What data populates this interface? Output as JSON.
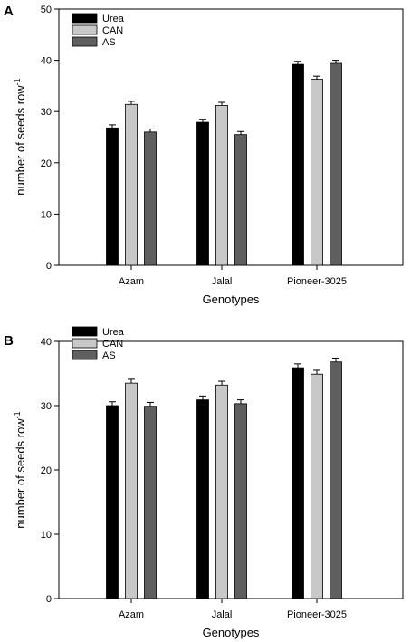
{
  "chart_data": [
    {
      "panel": "A",
      "type": "bar",
      "categories": [
        "Azam",
        "Jalal",
        "Pioneer-3025"
      ],
      "series": [
        {
          "name": "Urea",
          "color": "#000000",
          "values": [
            26.8,
            27.9,
            39.2
          ],
          "errors": [
            0.6,
            0.6,
            0.6
          ]
        },
        {
          "name": "CAN",
          "color": "#c8c8c8",
          "values": [
            31.4,
            31.2,
            36.3
          ],
          "errors": [
            0.6,
            0.6,
            0.6
          ]
        },
        {
          "name": "AS",
          "color": "#5f5f5f",
          "values": [
            26.0,
            25.5,
            39.4
          ],
          "errors": [
            0.6,
            0.6,
            0.6
          ]
        }
      ],
      "xlabel": "Genotypes",
      "ylabel": "number of seeds row",
      "ylabel_sup": "-1",
      "ylim": [
        0,
        50
      ],
      "yticks": [
        "0",
        "10",
        "20",
        "30",
        "40",
        "50"
      ],
      "legend_position": "top-left",
      "grid": false
    },
    {
      "panel": "B",
      "type": "bar",
      "categories": [
        "Azam",
        "Jalal",
        "Pioneer-3025"
      ],
      "series": [
        {
          "name": "Urea",
          "color": "#000000",
          "values": [
            30.0,
            30.9,
            35.9
          ],
          "errors": [
            0.6,
            0.6,
            0.6
          ]
        },
        {
          "name": "CAN",
          "color": "#c8c8c8",
          "values": [
            33.5,
            33.2,
            34.9
          ],
          "errors": [
            0.6,
            0.6,
            0.6
          ]
        },
        {
          "name": "AS",
          "color": "#5f5f5f",
          "values": [
            29.9,
            30.3,
            36.8
          ],
          "errors": [
            0.6,
            0.6,
            0.6
          ]
        }
      ],
      "xlabel": "Genotypes",
      "ylabel": "number of seeds row",
      "ylabel_sup": "-1",
      "ylim": [
        0,
        40
      ],
      "yticks": [
        "0",
        "10",
        "20",
        "30",
        "40"
      ],
      "legend_position": "top-left",
      "grid": false
    }
  ]
}
